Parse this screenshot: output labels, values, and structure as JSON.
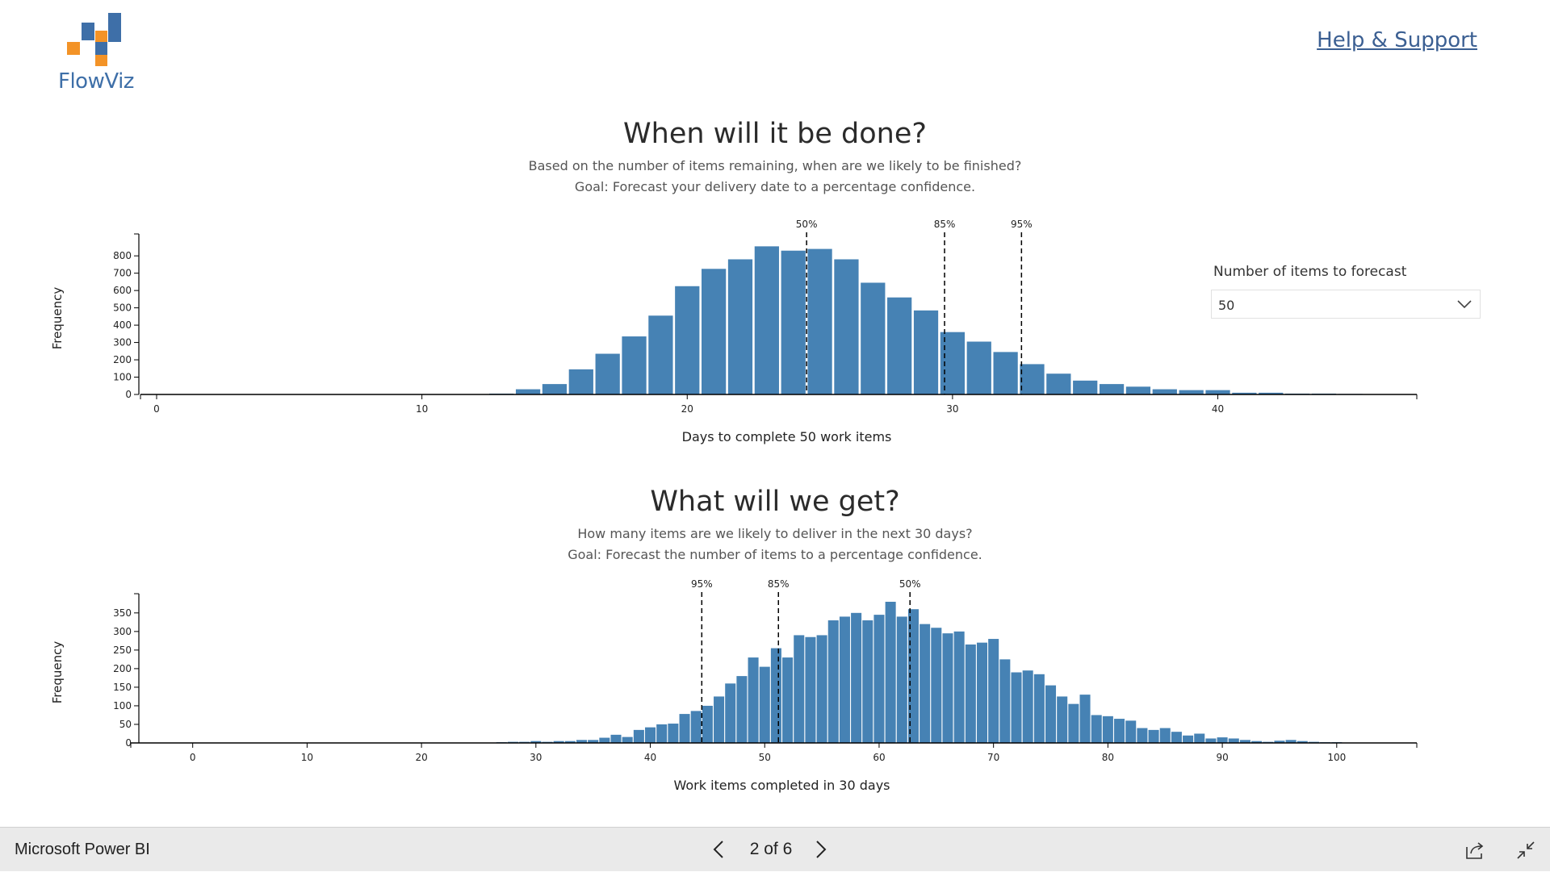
{
  "header": {
    "logo_text": "FlowViz",
    "help_link": "Help & Support"
  },
  "section1": {
    "title": "When will it be done?",
    "subtitle1": "Based on the number of items remaining, when are we likely to be finished?",
    "subtitle2": "Goal: Forecast your delivery date to a percentage confidence."
  },
  "section2": {
    "title": "What will we get?",
    "subtitle1": "How many items are we likely to deliver in the next 30 days?",
    "subtitle2": "Goal: Forecast the number of items to a percentage confidence."
  },
  "forecast_control": {
    "label": "Number of items to forecast",
    "value": "50"
  },
  "footer": {
    "app_name": "Microsoft Power BI",
    "page_indicator": "2 of 6"
  },
  "colors": {
    "bar": "#4682b4",
    "text": "#333333",
    "footer_bg": "#eaeaea",
    "link": "#3b5f92"
  },
  "chart_data": [
    {
      "type": "bar",
      "xlabel": "Days to complete 50 work items",
      "ylabel": "Frequency",
      "xlim": [
        0,
        47.5
      ],
      "ylim": [
        0,
        880
      ],
      "xticks": [
        0,
        10,
        20,
        30,
        40
      ],
      "yticks": [
        0,
        100,
        200,
        300,
        400,
        500,
        600,
        700,
        800
      ],
      "x": [
        13,
        14,
        15,
        16,
        17,
        18,
        19,
        20,
        21,
        22,
        23,
        24,
        25,
        26,
        27,
        28,
        29,
        30,
        31,
        32,
        33,
        34,
        35,
        36,
        37,
        38,
        39,
        40,
        41,
        42,
        43,
        44,
        45,
        46
      ],
      "values": [
        5,
        30,
        60,
        145,
        235,
        335,
        455,
        625,
        725,
        780,
        855,
        830,
        840,
        780,
        645,
        560,
        485,
        360,
        305,
        245,
        175,
        120,
        80,
        60,
        45,
        30,
        25,
        25,
        10,
        10,
        5,
        5,
        3,
        2
      ],
      "percentiles": [
        {
          "label": "50%",
          "x": 24.5
        },
        {
          "label": "85%",
          "x": 29.7
        },
        {
          "label": "95%",
          "x": 32.6
        }
      ]
    },
    {
      "type": "bar",
      "xlabel": "Work items completed in 30 days",
      "ylabel": "Frequency",
      "xlim": [
        -4,
        107
      ],
      "ylim": [
        0,
        380
      ],
      "xticks": [
        0,
        10,
        20,
        30,
        40,
        50,
        60,
        70,
        80,
        90,
        100
      ],
      "yticks": [
        0,
        50,
        100,
        150,
        200,
        250,
        300,
        350
      ],
      "x": [
        27,
        28,
        29,
        30,
        31,
        32,
        33,
        34,
        35,
        36,
        37,
        38,
        39,
        40,
        41,
        42,
        43,
        44,
        45,
        46,
        47,
        48,
        49,
        50,
        51,
        52,
        53,
        54,
        55,
        56,
        57,
        58,
        59,
        60,
        61,
        62,
        63,
        64,
        65,
        66,
        67,
        68,
        69,
        70,
        71,
        72,
        73,
        74,
        75,
        76,
        77,
        78,
        79,
        80,
        81,
        82,
        83,
        84,
        85,
        86,
        87,
        88,
        89,
        90,
        91,
        92,
        93,
        94,
        95,
        96,
        97,
        98,
        99,
        100,
        101,
        102,
        103,
        104
      ],
      "values": [
        2,
        3,
        3,
        5,
        3,
        5,
        5,
        8,
        8,
        14,
        22,
        16,
        35,
        42,
        50,
        52,
        78,
        86,
        100,
        125,
        160,
        180,
        230,
        205,
        255,
        230,
        290,
        285,
        290,
        330,
        340,
        350,
        330,
        345,
        380,
        340,
        360,
        320,
        310,
        295,
        300,
        265,
        270,
        280,
        225,
        190,
        195,
        185,
        155,
        125,
        105,
        130,
        75,
        72,
        65,
        60,
        40,
        35,
        40,
        30,
        20,
        25,
        12,
        15,
        12,
        8,
        5,
        3,
        6,
        8,
        5,
        3,
        2,
        2,
        1,
        1,
        1,
        1
      ],
      "percentiles": [
        {
          "label": "95%",
          "x": 44.5
        },
        {
          "label": "85%",
          "x": 51.2
        },
        {
          "label": "50%",
          "x": 62.7
        }
      ]
    }
  ]
}
